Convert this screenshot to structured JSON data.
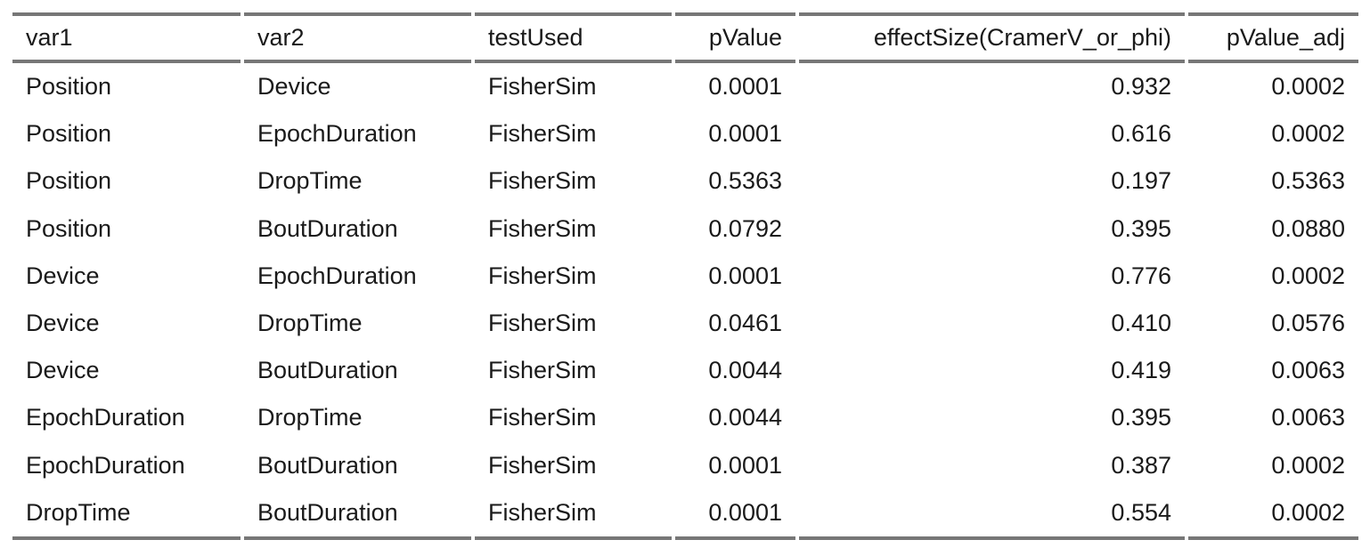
{
  "table": {
    "columns": [
      "var1",
      "var2",
      "testUsed",
      "pValue",
      "effectSize(CramerV_or_phi)",
      "pValue_adj"
    ],
    "rows": [
      [
        "Position",
        "Device",
        "FisherSim",
        "0.0001",
        "0.932",
        "0.0002"
      ],
      [
        "Position",
        "EpochDuration",
        "FisherSim",
        "0.0001",
        "0.616",
        "0.0002"
      ],
      [
        "Position",
        "DropTime",
        "FisherSim",
        "0.5363",
        "0.197",
        "0.5363"
      ],
      [
        "Position",
        "BoutDuration",
        "FisherSim",
        "0.0792",
        "0.395",
        "0.0880"
      ],
      [
        "Device",
        "EpochDuration",
        "FisherSim",
        "0.0001",
        "0.776",
        "0.0002"
      ],
      [
        "Device",
        "DropTime",
        "FisherSim",
        "0.0461",
        "0.410",
        "0.0576"
      ],
      [
        "Device",
        "BoutDuration",
        "FisherSim",
        "0.0044",
        "0.419",
        "0.0063"
      ],
      [
        "EpochDuration",
        "DropTime",
        "FisherSim",
        "0.0044",
        "0.395",
        "0.0063"
      ],
      [
        "EpochDuration",
        "BoutDuration",
        "FisherSim",
        "0.0001",
        "0.387",
        "0.0002"
      ],
      [
        "DropTime",
        "BoutDuration",
        "FisherSim",
        "0.0001",
        "0.554",
        "0.0002"
      ]
    ]
  }
}
